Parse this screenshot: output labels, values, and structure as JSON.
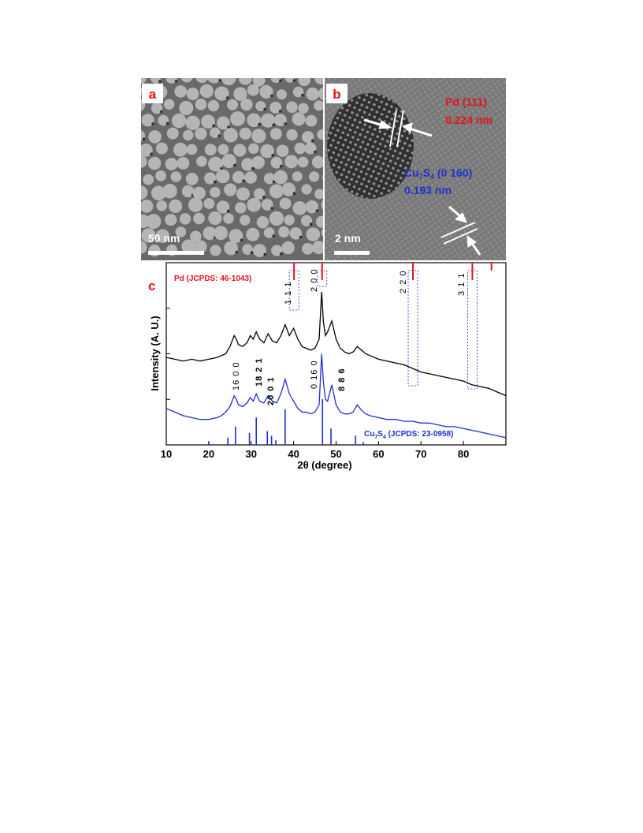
{
  "panels": {
    "a": {
      "label": "a",
      "scale_bar": "50 nm"
    },
    "b": {
      "label": "b",
      "scale_bar": "2 nm",
      "pd_annotation": {
        "line1": "Pd (111)",
        "line2": "0.224 nm"
      },
      "cu_annotation": {
        "line1_base": "Cu",
        "sub1": "7",
        "base2": "S",
        "sub2": "4",
        "line1_rest": " (0 160)",
        "line2": "0.193 nm"
      }
    },
    "c": {
      "label": "c",
      "pd_reference": "Pd (JCPDS: 46-1043)",
      "cu_reference": {
        "base1": "Cu",
        "sub1": "7",
        "base2": "S",
        "sub2": "4",
        "rest": " (JCPDS: 23-0958)"
      },
      "pd_hkl": [
        "1 1 1",
        "2 0 0",
        "2 2 0",
        "3 1 1"
      ],
      "cu_hkl": [
        "16 0 0",
        "18 2 1",
        "20 0 1",
        "0 16 0",
        "8 8 6"
      ]
    }
  },
  "colors": {
    "pd": "#e8101a",
    "cu": "#1f2fd0",
    "black": "#000000"
  },
  "chart_data": {
    "type": "line",
    "xlabel": "2θ (degree)",
    "ylabel": "Intensity (A. U.)",
    "xlim": [
      10,
      90
    ],
    "x_ticks": [
      10,
      20,
      30,
      40,
      50,
      60,
      70,
      80
    ],
    "grid": false,
    "series": [
      {
        "x": [
          10,
          12,
          14,
          16,
          18,
          20,
          22,
          23,
          24,
          25,
          26,
          26.5,
          27,
          28,
          29,
          29.8,
          30.5,
          31.2,
          32,
          33,
          34,
          35,
          36,
          37,
          38,
          39,
          40,
          41,
          42,
          43,
          44,
          45,
          46,
          46.6,
          47,
          47.5,
          48,
          49,
          50,
          51,
          52,
          53,
          54,
          55,
          56,
          57,
          58,
          60,
          62,
          64,
          66,
          68,
          70,
          72,
          74,
          76,
          78,
          80,
          82,
          84,
          86,
          88,
          90
        ],
        "values": [
          0.48,
          0.47,
          0.46,
          0.47,
          0.46,
          0.47,
          0.48,
          0.49,
          0.5,
          0.54,
          0.6,
          0.58,
          0.55,
          0.54,
          0.56,
          0.6,
          0.58,
          0.62,
          0.58,
          0.56,
          0.61,
          0.57,
          0.56,
          0.6,
          0.66,
          0.6,
          0.64,
          0.58,
          0.54,
          0.53,
          0.52,
          0.53,
          0.58,
          0.84,
          0.68,
          0.6,
          0.62,
          0.68,
          0.58,
          0.53,
          0.51,
          0.5,
          0.51,
          0.54,
          0.52,
          0.5,
          0.49,
          0.47,
          0.46,
          0.45,
          0.44,
          0.42,
          0.4,
          0.39,
          0.38,
          0.37,
          0.36,
          0.35,
          0.33,
          0.32,
          0.31,
          0.29,
          0.27
        ]
      },
      {
        "x": [
          10,
          12,
          14,
          16,
          18,
          20,
          22,
          23,
          24,
          25,
          26,
          26.5,
          27,
          28,
          29,
          29.8,
          30.5,
          31.2,
          32,
          33,
          34,
          35,
          36,
          37,
          38,
          39,
          40,
          41,
          42,
          43,
          44,
          45,
          46,
          46.6,
          47,
          47.5,
          48,
          49,
          50,
          51,
          52,
          53,
          54,
          55,
          56,
          57,
          58,
          60,
          62,
          64,
          66,
          68,
          70,
          72,
          74,
          76,
          78,
          80,
          82,
          84,
          86,
          88,
          90
        ],
        "values": [
          0.2,
          0.18,
          0.16,
          0.15,
          0.14,
          0.14,
          0.15,
          0.16,
          0.18,
          0.21,
          0.27,
          0.25,
          0.22,
          0.21,
          0.23,
          0.26,
          0.24,
          0.28,
          0.24,
          0.23,
          0.27,
          0.24,
          0.23,
          0.28,
          0.36,
          0.28,
          0.24,
          0.2,
          0.18,
          0.18,
          0.17,
          0.18,
          0.22,
          0.5,
          0.35,
          0.25,
          0.24,
          0.33,
          0.22,
          0.18,
          0.17,
          0.17,
          0.18,
          0.22,
          0.19,
          0.17,
          0.16,
          0.15,
          0.14,
          0.14,
          0.13,
          0.13,
          0.12,
          0.12,
          0.11,
          0.1,
          0.1,
          0.09,
          0.08,
          0.07,
          0.06,
          0.05,
          0.04
        ]
      }
    ],
    "pd_reference_lines": [
      40.1,
      46.7,
      68.1,
      82.1,
      86.6
    ],
    "cu_reference_lines": [
      {
        "x": 20,
        "h": 0.06
      },
      {
        "x": 24.5,
        "h": 0.16
      },
      {
        "x": 26.3,
        "h": 0.4
      },
      {
        "x": 29.6,
        "h": 0.26
      },
      {
        "x": 31.2,
        "h": 0.6
      },
      {
        "x": 33.8,
        "h": 0.3
      },
      {
        "x": 34.8,
        "h": 0.2
      },
      {
        "x": 35.8,
        "h": 0.1
      },
      {
        "x": 38,
        "h": 0.78
      },
      {
        "x": 46.8,
        "h": 1.0
      },
      {
        "x": 48.8,
        "h": 0.36
      },
      {
        "x": 54.6,
        "h": 0.2
      },
      {
        "x": 56.4,
        "h": 0.06
      }
    ]
  }
}
